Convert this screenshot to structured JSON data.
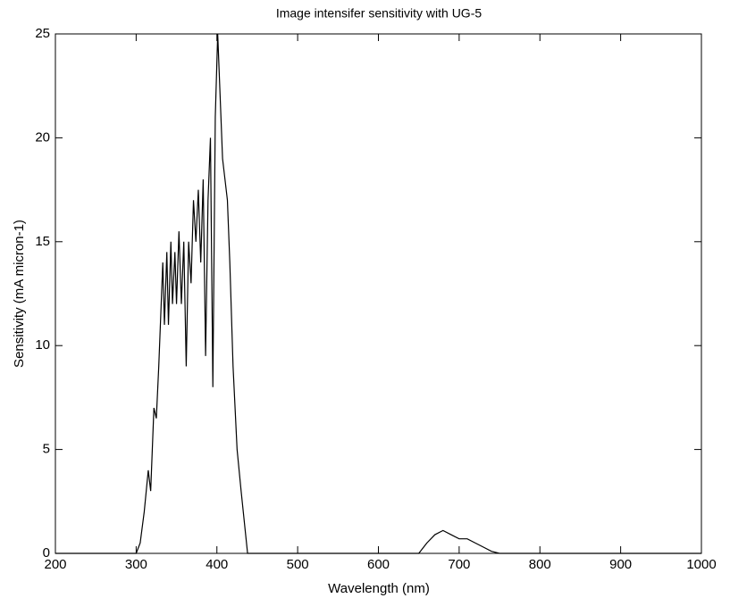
{
  "chart_data": {
    "type": "line",
    "title": "Image intensifer sensitivity with UG-5",
    "x_label": "Wavelength (nm)",
    "y_label": "Sensitivity (mA micron-1)",
    "x": [
      200,
      300,
      305,
      310,
      315,
      318,
      322,
      325,
      328,
      330,
      333,
      335,
      338,
      340,
      343,
      345,
      348,
      350,
      353,
      356,
      359,
      362,
      365,
      368,
      371,
      374,
      377,
      380,
      383,
      386,
      389,
      392,
      395,
      398,
      401,
      404,
      407,
      410,
      413,
      416,
      420,
      425,
      430,
      438,
      450,
      650,
      660,
      670,
      680,
      690,
      700,
      710,
      720,
      730,
      740,
      750,
      1000
    ],
    "values": [
      0,
      0,
      0.5,
      2,
      4,
      3,
      7,
      6.5,
      9,
      11,
      14,
      11,
      14.5,
      11,
      15,
      12,
      14.5,
      12,
      15.5,
      12,
      15,
      9,
      15,
      13,
      17,
      15,
      17.5,
      14,
      18,
      9.5,
      17,
      20,
      8,
      21,
      25,
      22,
      19,
      18,
      17,
      14,
      9,
      5,
      3,
      0,
      0,
      0,
      0.5,
      0.9,
      1.1,
      0.9,
      0.7,
      0.7,
      0.5,
      0.3,
      0.1,
      0,
      0
    ],
    "color": "#000000",
    "xlim": [
      200,
      1000
    ],
    "xticks": [
      200,
      300,
      400,
      500,
      600,
      700,
      800,
      900,
      1000
    ],
    "ylim": [
      0,
      25
    ],
    "yticks": [
      0,
      5,
      10,
      15,
      20,
      25
    ],
    "grid": false
  }
}
